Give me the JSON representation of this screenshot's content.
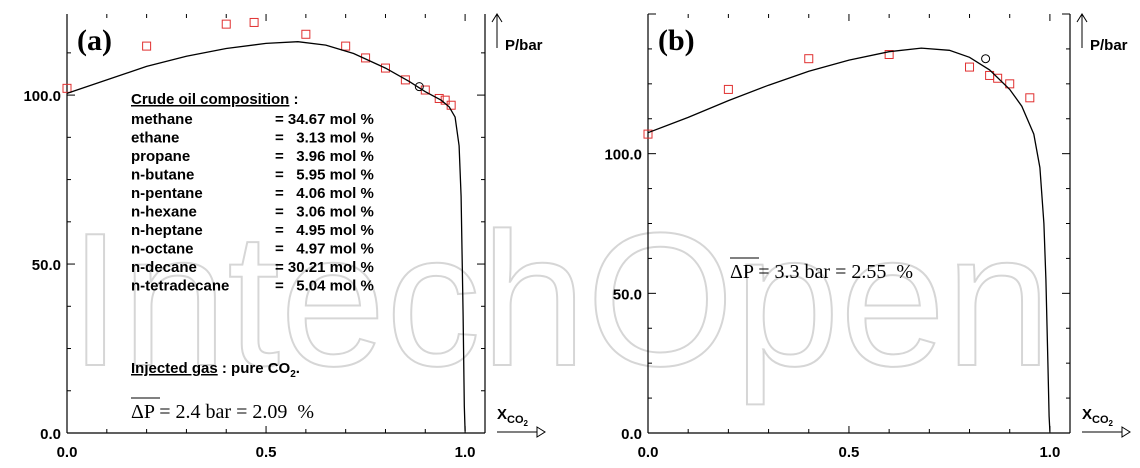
{
  "watermark": "IntechOpen",
  "chart_data": [
    {
      "type": "scatter",
      "panel_label": "(a)",
      "xlabel": "X",
      "xlabel_sub": "CO",
      "xlabel_subsub": "2",
      "ylabel": "P/bar",
      "xlim": [
        0,
        1.05
      ],
      "ylim": [
        0,
        124
      ],
      "x_ticks": [
        "0.0",
        "0.5",
        "1.0"
      ],
      "y_ticks": [
        "0.0",
        "50.0",
        "100.0"
      ],
      "series": [
        {
          "kind": "points",
          "color": "#e03030",
          "points": [
            [
              0.0,
              102
            ],
            [
              0.2,
              114.5
            ],
            [
              0.4,
              121
            ],
            [
              0.47,
              121.5
            ],
            [
              0.6,
              118
            ],
            [
              0.7,
              114.5
            ],
            [
              0.75,
              111
            ],
            [
              0.8,
              108
            ],
            [
              0.85,
              104.5
            ],
            [
              0.9,
              101.5
            ],
            [
              0.935,
              99
            ],
            [
              0.95,
              98.5
            ],
            [
              0.965,
              97
            ]
          ]
        },
        {
          "kind": "line",
          "color": "#000000",
          "points": [
            [
              0.0,
              100.5
            ],
            [
              0.1,
              104.5
            ],
            [
              0.2,
              108.5
            ],
            [
              0.3,
              111.5
            ],
            [
              0.4,
              113.8
            ],
            [
              0.5,
              115.3
            ],
            [
              0.58,
              115.8
            ],
            [
              0.65,
              114.8
            ],
            [
              0.72,
              112.3
            ],
            [
              0.8,
              108
            ],
            [
              0.86,
              104
            ],
            [
              0.9,
              101
            ],
            [
              0.94,
              98.5
            ],
            [
              0.96,
              96.5
            ],
            [
              0.975,
              93.5
            ],
            [
              0.985,
              85
            ],
            [
              0.99,
              70
            ],
            [
              0.995,
              35
            ],
            [
              0.998,
              8
            ],
            [
              1.0,
              0.5
            ]
          ]
        },
        {
          "kind": "marker",
          "color": "#000000",
          "points": [
            [
              0.885,
              102.5
            ]
          ]
        }
      ],
      "composition_title": "Crude oil composition",
      "composition_colon": " :",
      "composition": [
        {
          "name": "methane",
          "value": "= 34.67 mol %"
        },
        {
          "name": "ethane",
          "value": "=   3.13 mol %"
        },
        {
          "name": "propane",
          "value": "=   3.96 mol %"
        },
        {
          "name": "n-butane",
          "value": "=   5.95 mol %"
        },
        {
          "name": "n-pentane",
          "value": "=   4.06 mol %"
        },
        {
          "name": "n-hexane",
          "value": "=   3.06 mol %"
        },
        {
          "name": "n-heptane",
          "value": "=   4.95 mol %"
        },
        {
          "name": "n-octane",
          "value": "=   4.97 mol %"
        },
        {
          "name": "n-decane",
          "value": "= 30.21 mol %"
        },
        {
          "name": "n-tetradecane",
          "value": "=   5.04 mol %"
        }
      ],
      "injected_label": "Injected gas",
      "injected_value": " : pure CO",
      "injected_sub": "2",
      "injected_tail": ".",
      "delta_p": "ΔP",
      "delta_p_text": " = 2.4 bar = 2.09  %"
    },
    {
      "type": "scatter",
      "panel_label": "(b)",
      "xlabel": "X",
      "xlabel_sub": "CO",
      "xlabel_subsub": "2",
      "ylabel": "P/bar",
      "xlim": [
        0,
        1.05
      ],
      "ylim": [
        0,
        150
      ],
      "x_ticks": [
        "0.0",
        "0.5",
        "1.0"
      ],
      "y_ticks": [
        "0.0",
        "50.0",
        "100.0"
      ],
      "series": [
        {
          "kind": "points",
          "color": "#e03030",
          "points": [
            [
              0.0,
              107
            ],
            [
              0.2,
              123
            ],
            [
              0.4,
              134
            ],
            [
              0.6,
              135.5
            ],
            [
              0.8,
              131
            ],
            [
              0.85,
              128
            ],
            [
              0.87,
              127
            ],
            [
              0.9,
              125
            ],
            [
              0.95,
              120
            ]
          ]
        },
        {
          "kind": "line",
          "color": "#000000",
          "points": [
            [
              0.0,
              107.5
            ],
            [
              0.1,
              113
            ],
            [
              0.2,
              119
            ],
            [
              0.3,
              124.5
            ],
            [
              0.4,
              129.5
            ],
            [
              0.5,
              133.5
            ],
            [
              0.6,
              136.5
            ],
            [
              0.68,
              137.8
            ],
            [
              0.75,
              137
            ],
            [
              0.8,
              134.5
            ],
            [
              0.85,
              130
            ],
            [
              0.9,
              123
            ],
            [
              0.93,
              117
            ],
            [
              0.96,
              107
            ],
            [
              0.975,
              95
            ],
            [
              0.985,
              75
            ],
            [
              0.99,
              55
            ],
            [
              0.995,
              25
            ],
            [
              0.998,
              6
            ],
            [
              1.0,
              0.5
            ]
          ]
        },
        {
          "kind": "marker",
          "color": "#000000",
          "points": [
            [
              0.84,
              134
            ]
          ]
        }
      ],
      "delta_p": "ΔP",
      "delta_p_text": " = 3.3 bar = 2.55  %"
    }
  ]
}
